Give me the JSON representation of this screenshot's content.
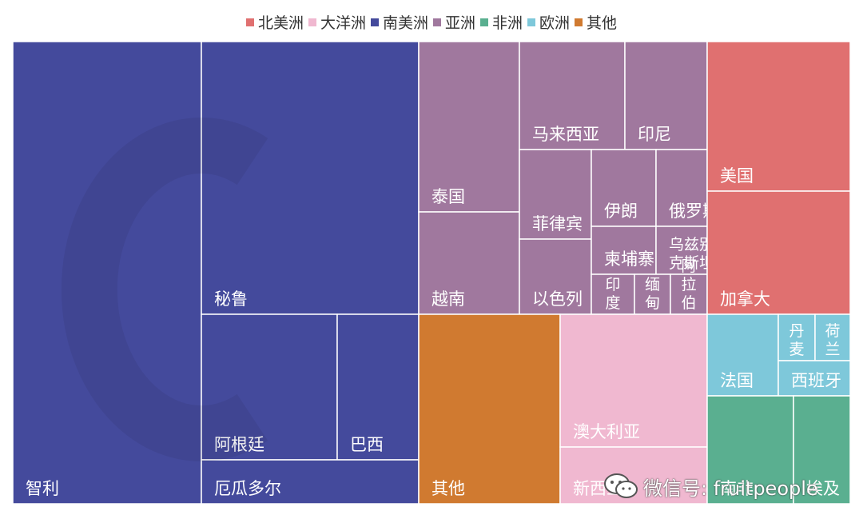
{
  "chart_data": {
    "type": "treemap",
    "title": "",
    "legend_placement": "top-center",
    "groups": [
      {
        "name": "北美洲",
        "color": "#e07070"
      },
      {
        "name": "大洋洲",
        "color": "#f0b8d0"
      },
      {
        "name": "南美洲",
        "color": "#444a9c"
      },
      {
        "name": "亚洲",
        "color": "#a0789e"
      },
      {
        "name": "非洲",
        "color": "#5aaf90"
      },
      {
        "name": "欧洲",
        "color": "#7ec8da"
      },
      {
        "name": "其他",
        "color": "#d07a30"
      }
    ],
    "nodes": [
      {
        "id": "chile",
        "label": "智利",
        "group": "南美洲",
        "value": 136
      },
      {
        "id": "peru",
        "label": "秘鲁",
        "group": "南美洲",
        "value": 92
      },
      {
        "id": "argentina",
        "label": "阿根廷",
        "group": "南美洲",
        "value": 29
      },
      {
        "id": "brazil",
        "label": "巴西",
        "group": "南美洲",
        "value": 18
      },
      {
        "id": "ecuador",
        "label": "厄瓜多尔",
        "group": "南美洲",
        "value": 16
      },
      {
        "id": "thailand",
        "label": "泰国",
        "group": "亚洲",
        "value": 17
      },
      {
        "id": "vietnam",
        "label": "越南",
        "group": "亚洲",
        "value": 16
      },
      {
        "id": "malaysia",
        "label": "马来西亚",
        "group": "亚洲",
        "value": 14
      },
      {
        "id": "indonesia",
        "label": "印尼",
        "group": "亚洲",
        "value": 10
      },
      {
        "id": "philippines",
        "label": "菲律宾",
        "group": "亚洲",
        "value": 8
      },
      {
        "id": "israel",
        "label": "以色列",
        "group": "亚洲",
        "value": 6
      },
      {
        "id": "iran",
        "label": "伊朗",
        "group": "亚洲",
        "value": 5
      },
      {
        "id": "russia",
        "label": "俄罗斯",
        "group": "亚洲",
        "value": 4
      },
      {
        "id": "cambodia",
        "label": "柬埔寨",
        "group": "亚洲",
        "value": 3
      },
      {
        "id": "uzbekistan",
        "label": "乌兹别克斯坦",
        "group": "亚洲",
        "value": 3
      },
      {
        "id": "india",
        "label": "印度",
        "group": "亚洲",
        "value": 2
      },
      {
        "id": "myanmar",
        "label": "缅甸",
        "group": "亚洲",
        "value": 2
      },
      {
        "id": "arabia",
        "label": "阿拉伯",
        "group": "亚洲",
        "value": 2
      },
      {
        "id": "usa",
        "label": "美国",
        "group": "北美洲",
        "value": 26
      },
      {
        "id": "canada",
        "label": "加拿大",
        "group": "北美洲",
        "value": 21
      },
      {
        "id": "other",
        "label": "其他",
        "group": "其他",
        "value": 41
      },
      {
        "id": "australia",
        "label": "澳大利亚",
        "group": "大洋洲",
        "value": 36
      },
      {
        "id": "newzealand",
        "label": "新西兰",
        "group": "大洋洲",
        "value": 14
      },
      {
        "id": "france",
        "label": "法国",
        "group": "欧洲",
        "value": 8
      },
      {
        "id": "denmark",
        "label": "丹麦",
        "group": "欧洲",
        "value": 3
      },
      {
        "id": "netherlands",
        "label": "荷兰",
        "group": "欧洲",
        "value": 3
      },
      {
        "id": "spain",
        "label": "西班牙",
        "group": "欧洲",
        "value": 3
      },
      {
        "id": "southafrica",
        "label": "南非",
        "group": "非洲",
        "value": 8
      },
      {
        "id": "egypt",
        "label": "埃及",
        "group": "非洲",
        "value": 5
      }
    ]
  },
  "watermark": {
    "text": "微信号: fruitpeople",
    "icon": "wechat-icon"
  }
}
